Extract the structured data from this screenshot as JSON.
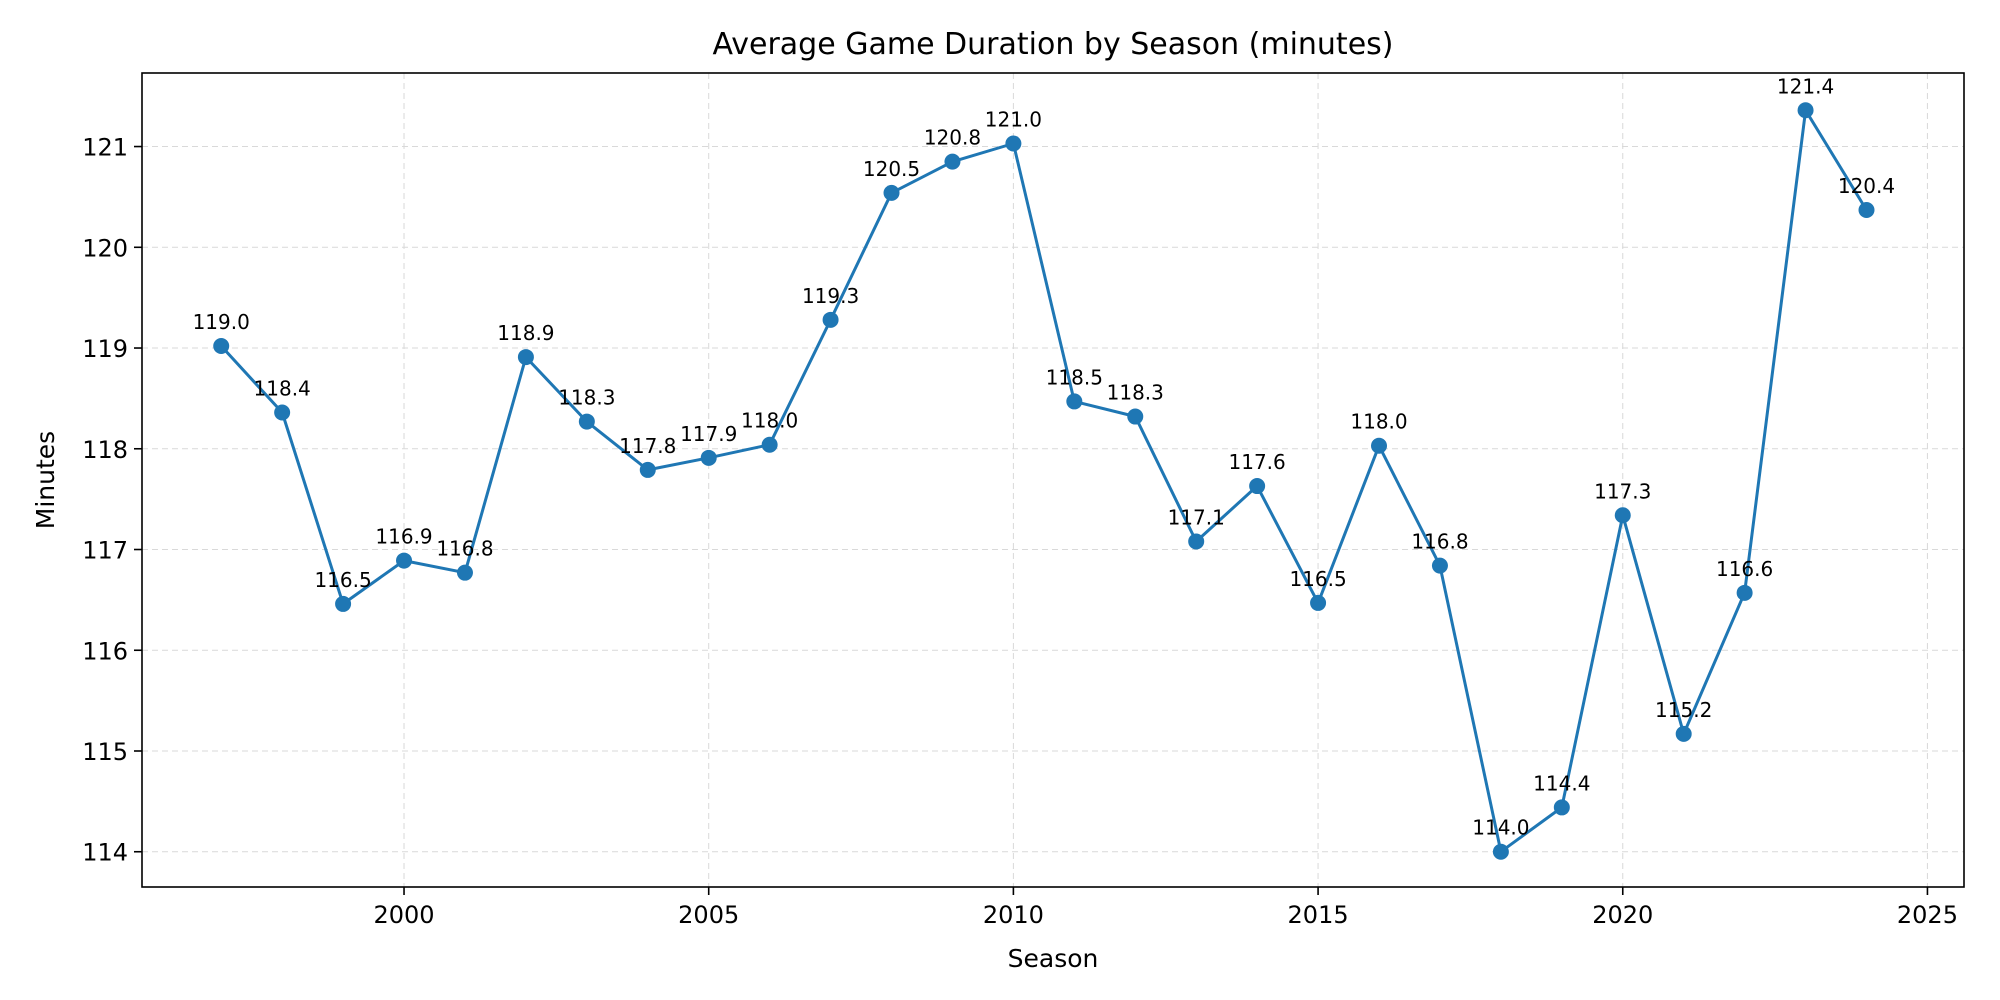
{
  "chart_data": {
    "type": "line",
    "title": "Average Game Duration by Season (minutes)",
    "xlabel": "Season",
    "ylabel": "Minutes",
    "xlim": [
      1995.7,
      2025.6
    ],
    "ylim": [
      113.65,
      121.73
    ],
    "xticks": [
      2000,
      2005,
      2010,
      2015,
      2020,
      2025
    ],
    "yticks": [
      114,
      115,
      116,
      117,
      118,
      119,
      120,
      121
    ],
    "grid": true,
    "color": "#1f77b4",
    "series": [
      {
        "x": [
          1997,
          1998,
          1999,
          2000,
          2001,
          2002,
          2003,
          2004,
          2005,
          2006,
          2007,
          2008,
          2009,
          2010,
          2011,
          2012,
          2013,
          2014,
          2015,
          2016,
          2017,
          2018,
          2019,
          2020,
          2021,
          2022,
          2023,
          2024
        ],
        "values": [
          119.02,
          118.36,
          116.46,
          116.89,
          116.77,
          118.91,
          118.27,
          117.79,
          117.91,
          118.04,
          119.28,
          120.54,
          120.85,
          121.03,
          118.47,
          118.32,
          117.08,
          117.63,
          116.47,
          118.03,
          116.84,
          114.0,
          114.44,
          117.34,
          115.17,
          116.57,
          121.36,
          120.37
        ],
        "labels": [
          "119.0",
          "118.4",
          "116.5",
          "116.9",
          "116.8",
          "118.9",
          "118.3",
          "117.8",
          "117.9",
          "118.0",
          "119.3",
          "120.5",
          "120.8",
          "121.0",
          "118.5",
          "118.3",
          "117.1",
          "117.6",
          "116.5",
          "118.0",
          "116.8",
          "114.0",
          "114.4",
          "117.3",
          "115.2",
          "116.6",
          "121.4",
          "120.4"
        ]
      }
    ]
  }
}
